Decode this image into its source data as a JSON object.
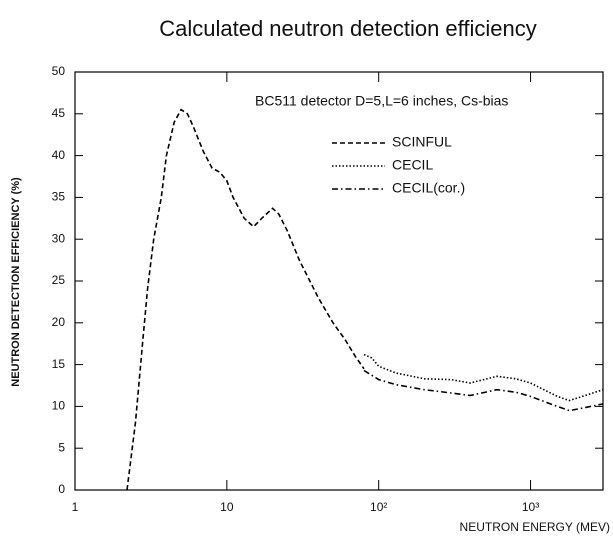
{
  "chart_data": {
    "type": "line",
    "title": "Calculated neutron detection efficiency",
    "xlabel": "NEUTRON ENERGY (MEV)",
    "ylabel": "NEUTRON DETECTION EFFICIENCY (%)",
    "annotation": "BC511 detector D=5,L=6 inches, Cs-bias",
    "xscale": "log",
    "xlim": [
      1,
      3000
    ],
    "ylim": [
      0,
      50
    ],
    "xticks": [
      1,
      10,
      {
        "value": 100,
        "label": "10²"
      },
      {
        "value": 1000,
        "label": "10³"
      }
    ],
    "yticks": [
      0,
      5,
      10,
      15,
      20,
      25,
      30,
      35,
      40,
      45,
      50
    ],
    "grid": false,
    "legend": "upper right",
    "series": [
      {
        "name": "SCINFUL",
        "color": "#000000",
        "dash": "dashed",
        "x": [
          2.2,
          2.5,
          2.8,
          3,
          3.3,
          3.7,
          4,
          4.5,
          5,
          5.5,
          6,
          7,
          8,
          9,
          10,
          11,
          13,
          15,
          17,
          20,
          22,
          25,
          30,
          40,
          50,
          60,
          70,
          80
        ],
        "values": [
          0,
          8,
          18,
          24,
          30,
          35,
          40,
          44,
          45.5,
          45,
          43.5,
          40.5,
          38.5,
          38,
          37,
          35,
          32.5,
          31.5,
          32.5,
          33.7,
          33,
          31,
          27.5,
          23,
          20,
          18,
          16,
          14.5
        ]
      },
      {
        "name": "CECIL",
        "color": "#000000",
        "dash": "dotted",
        "x": [
          80,
          90,
          100,
          130,
          200,
          300,
          400,
          600,
          800,
          1000,
          1500,
          1800,
          2200,
          3000
        ],
        "values": [
          16.2,
          15.8,
          14.8,
          14,
          13.3,
          13.2,
          12.8,
          13.6,
          13.3,
          12.8,
          11.2,
          10.7,
          11.2,
          12
        ]
      },
      {
        "name": "CECIL(cor.)",
        "color": "#000000",
        "dash": "dashdot",
        "x": [
          80,
          100,
          130,
          200,
          300,
          400,
          600,
          800,
          1000,
          1500,
          1800,
          2200,
          3000
        ],
        "values": [
          14.3,
          13.2,
          12.6,
          12,
          11.6,
          11.3,
          12,
          11.7,
          11.2,
          10,
          9.5,
          9.8,
          10.3
        ]
      }
    ]
  }
}
